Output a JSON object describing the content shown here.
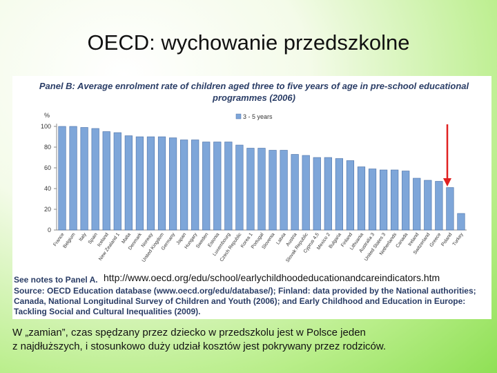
{
  "slide_title": "OECD: wychowanie przedszkolne",
  "chart_data": {
    "type": "bar",
    "title": "Panel B: Average enrolment rate of children aged three to five years of age in pre-school educational programmes (2006)",
    "ylabel": "%",
    "categories": [
      "France",
      "Belgium",
      "Italy",
      "Spain",
      "Iceland",
      "New Zealand 1",
      "Malta",
      "Denmark",
      "Norway",
      "United Kingdom",
      "Germany",
      "Japan",
      "Hungary",
      "Sweden",
      "Estonia",
      "Luxembourg",
      "Czech Republic",
      "Korea 1",
      "Portugal",
      "Slovenia",
      "Latvia",
      "Austria",
      "Slovak Republic",
      "Cyprus 4,5",
      "Mexico 2",
      "Bulgaria",
      "Finland",
      "Lithuania",
      "Australia 3",
      "United States 3",
      "Netherlands",
      "Canada",
      "Ireland",
      "Switzerland",
      "Greece",
      "Poland",
      "Turkey"
    ],
    "series": [
      {
        "name": "3 - 5 years",
        "color": "#7ea6d9",
        "values": [
          100,
          100,
          99,
          98,
          95,
          94,
          91,
          90,
          90,
          90,
          89,
          87,
          87,
          85,
          85,
          85,
          82,
          79,
          79,
          77,
          77,
          73,
          72,
          70,
          70,
          69,
          67,
          61,
          59,
          58,
          58,
          57,
          50,
          48,
          47,
          41,
          16
        ]
      }
    ],
    "ylim": [
      0,
      100
    ],
    "yticks": [
      0,
      20,
      40,
      60,
      80,
      100
    ],
    "grid": false
  },
  "notes": "See notes to Panel A.",
  "url": "http://www.oecd.org/edu/school/earlychildhoodeducationandcareindicators.htm",
  "source": "Source: OECD Education database (www.oecd.org/edu/database/); Finland: data provided by the National authorities; Canada, National Longitudinal Survey of Children and Youth (2006); and Early Childhood and Education in Europe: Tackling Social and Cultural Inequalities (2009).",
  "caption_lines": [
    "W „zamian”, czas spędzany przez dziecko w przedszkolu jest w Polsce jeden",
    "z najdłuższych, i stosunkowo duży udział kosztów jest pokrywany przez rodziców."
  ]
}
